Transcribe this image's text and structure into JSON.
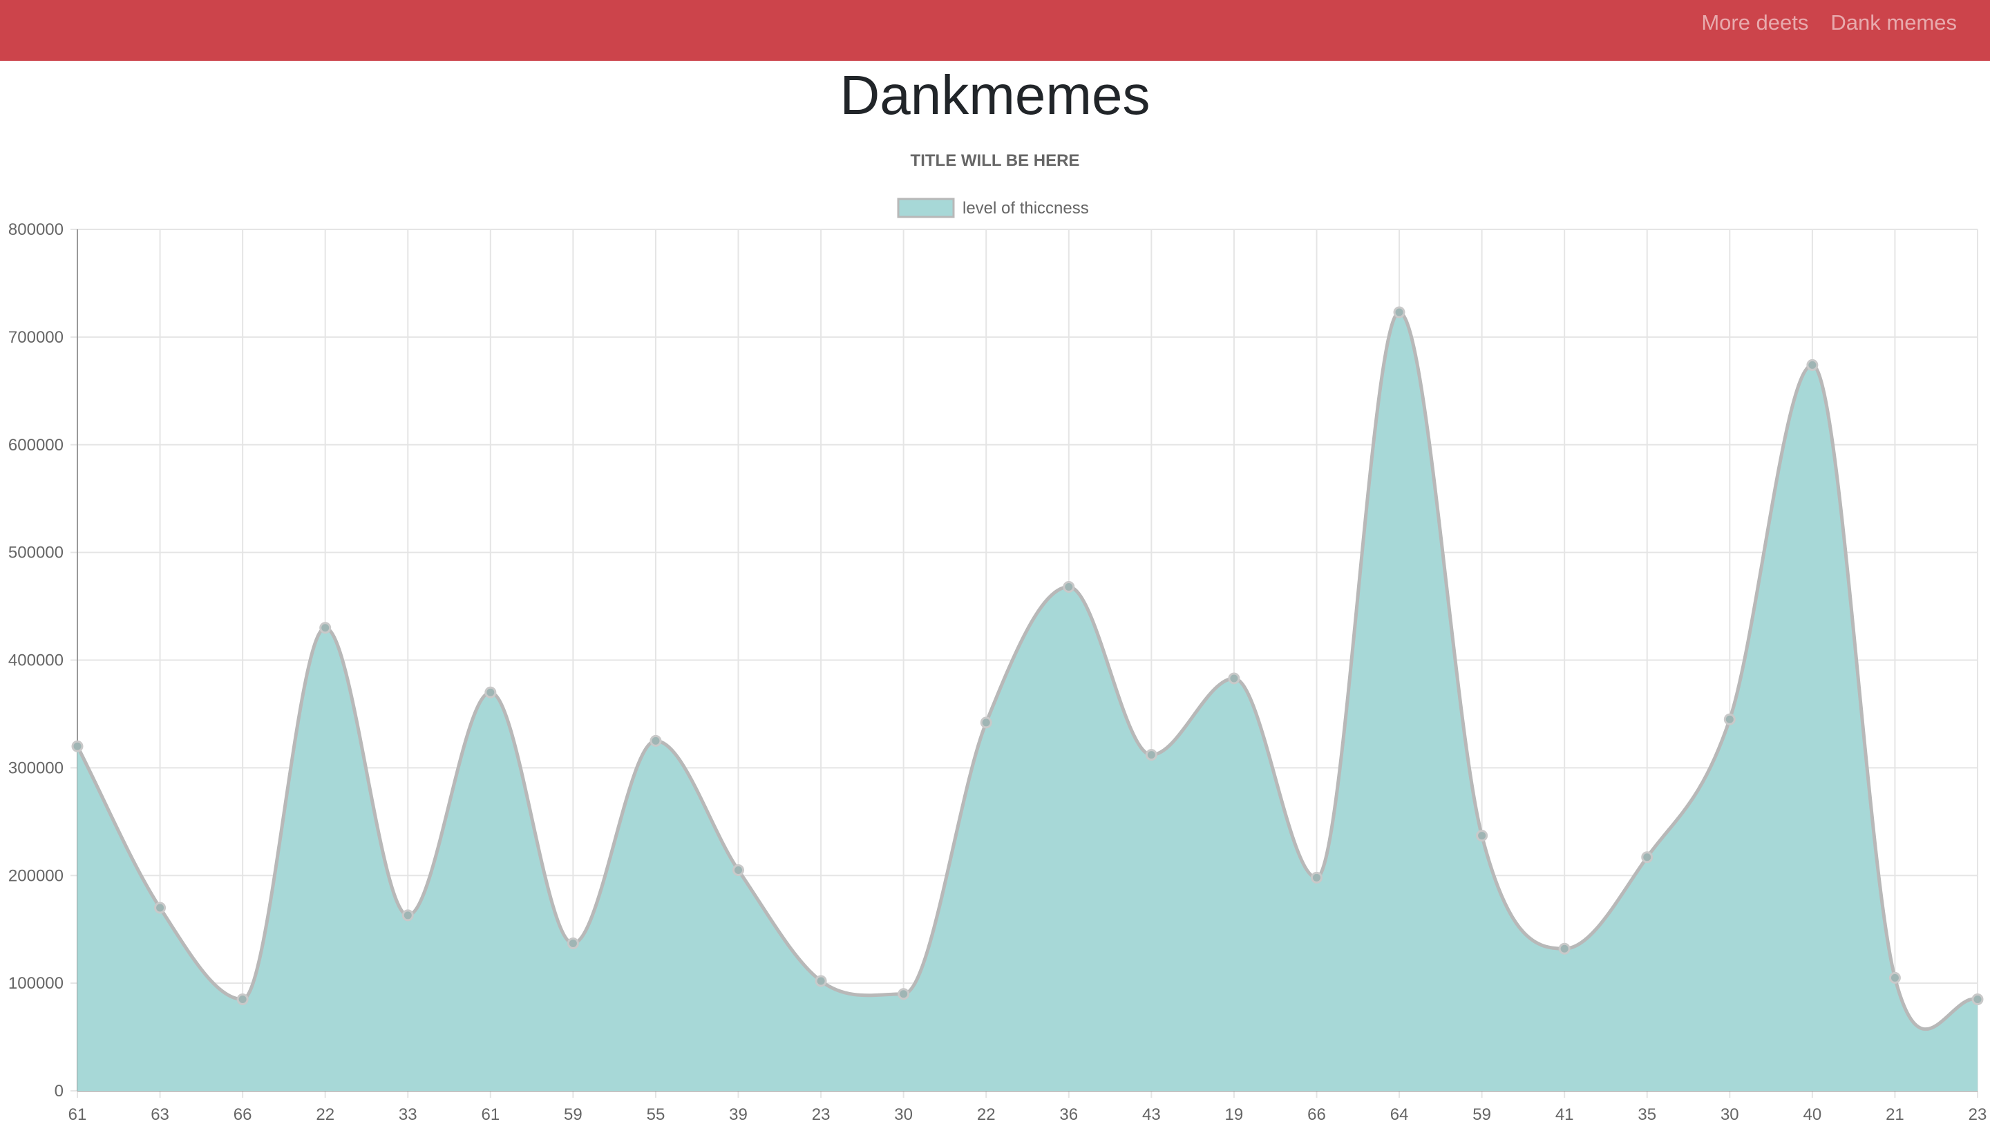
{
  "navbar": {
    "links": [
      "More deets",
      "Dank memes"
    ],
    "background_color": "#cc444b"
  },
  "page": {
    "title": "Dankmemes"
  },
  "chart_data": {
    "type": "area",
    "title": "TITLE WILL BE HERE",
    "categories": [
      "61",
      "63",
      "66",
      "22",
      "33",
      "61",
      "59",
      "55",
      "39",
      "23",
      "30",
      "22",
      "36",
      "43",
      "19",
      "66",
      "64",
      "59",
      "41",
      "35",
      "30",
      "40",
      "21",
      "23"
    ],
    "series": [
      {
        "name": "level of thiccness",
        "values": [
          320000,
          170000,
          85000,
          430000,
          163000,
          370000,
          137000,
          325000,
          205000,
          102000,
          90000,
          342000,
          468000,
          312000,
          383000,
          198000,
          723000,
          237000,
          132000,
          217000,
          345000,
          674000,
          105000,
          85000
        ],
        "fill_color": "#a7d8d7",
        "line_color": "#b8b8b8"
      }
    ],
    "ylim": [
      0,
      800000
    ],
    "yticks": [
      0,
      100000,
      200000,
      300000,
      400000,
      500000,
      600000,
      700000,
      800000
    ],
    "ytick_labels": [
      "0",
      "100000",
      "200000",
      "300000",
      "400000",
      "500000",
      "600000",
      "700000",
      "800000"
    ],
    "grid": true,
    "legend_position": "top-center",
    "xlabel": "",
    "ylabel": ""
  }
}
